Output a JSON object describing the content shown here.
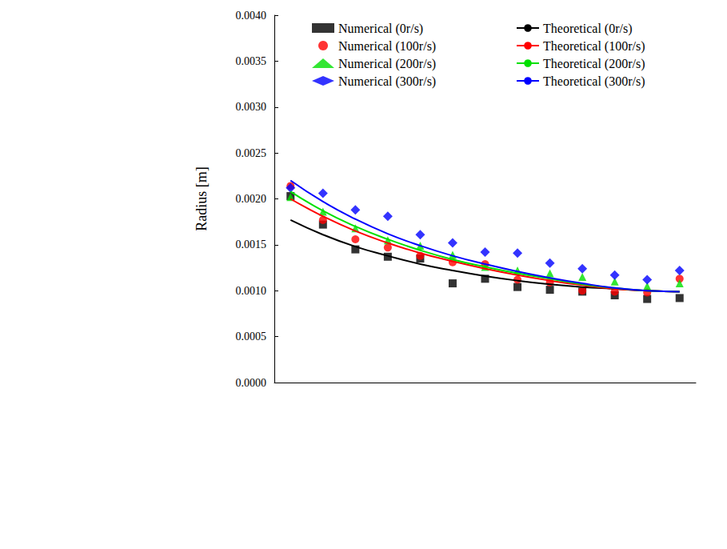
{
  "chart_data": {
    "type": "line",
    "y_label": "Radius [m]",
    "categories": [
      null,
      null,
      null,
      null,
      null,
      null,
      null,
      null,
      null,
      null,
      null,
      null,
      null
    ],
    "ylim": [
      0,
      0.004
    ],
    "yticks": [
      {
        "value": 0,
        "label": "0.0000"
      },
      {
        "value": 0.0005,
        "label": "0.0005"
      },
      {
        "value": 0.001,
        "label": "0.0010"
      },
      {
        "value": 0.0015,
        "label": "0.0015"
      },
      {
        "value": 0.002,
        "label": "0.0020"
      },
      {
        "value": 0.0025,
        "label": "0.0025"
      },
      {
        "value": 0.003,
        "label": "0.0030"
      },
      {
        "value": 0.0035,
        "label": "0.0035"
      },
      {
        "value": 0.004,
        "label": "0.0040"
      }
    ],
    "grid": false,
    "legend": "top",
    "tick_labels": "y",
    "series": [
      {
        "name": "Numerical (0r/s)",
        "type": "scatter",
        "marker": "square",
        "color": "#000000",
        "values": [
          0.00203,
          0.00172,
          0.00145,
          0.00137,
          0.00135,
          0.00108,
          0.00113,
          0.00104,
          0.00101,
          0.00099,
          0.00095,
          0.00091,
          0.00092
        ]
      },
      {
        "name": "Numerical (100r/s)",
        "type": "scatter",
        "marker": "circle",
        "color": "#ff0000",
        "values": [
          0.00214,
          0.00177,
          0.00156,
          0.00147,
          0.00138,
          0.00131,
          0.00129,
          0.00112,
          0.00109,
          0.001,
          0.00099,
          0.00098,
          0.00113
        ]
      },
      {
        "name": "Numerical (200r/s)",
        "type": "scatter",
        "marker": "triangle",
        "color": "#00e000",
        "values": [
          0.00202,
          0.00186,
          0.00168,
          0.00155,
          0.00149,
          0.00139,
          0.00126,
          0.00122,
          0.00119,
          0.00115,
          0.0011,
          0.00105,
          0.00108
        ]
      },
      {
        "name": "Numerical (300r/s)",
        "type": "scatter",
        "marker": "diamond",
        "color": "#0000ff",
        "values": [
          0.00212,
          0.00206,
          0.00188,
          0.00181,
          0.00161,
          0.00152,
          0.00142,
          0.00141,
          0.0013,
          0.00124,
          0.00117,
          0.00112,
          0.00122
        ]
      },
      {
        "name": "Theoretical (0r/s)",
        "type": "line",
        "line_style": "solid",
        "color": "#000000",
        "values": [
          0.00177,
          0.00161,
          0.00148,
          0.00138,
          0.00129,
          0.00122,
          0.00116,
          0.00111,
          0.00107,
          0.00104,
          0.00102,
          0.001,
          0.00099
        ]
      },
      {
        "name": "Theoretical (100r/s)",
        "type": "line",
        "line_style": "solid",
        "color": "#ff0000",
        "values": [
          0.002,
          0.00181,
          0.00165,
          0.00152,
          0.00141,
          0.00132,
          0.00124,
          0.00117,
          0.00111,
          0.00106,
          0.00102,
          0.001,
          0.00099
        ]
      },
      {
        "name": "Theoretical (200r/s)",
        "type": "line",
        "line_style": "solid",
        "color": "#00e000",
        "values": [
          0.00208,
          0.00187,
          0.0017,
          0.00156,
          0.00144,
          0.00134,
          0.00126,
          0.00119,
          0.00113,
          0.00107,
          0.00103,
          0.001,
          0.00099
        ]
      },
      {
        "name": "Theoretical (300r/s)",
        "type": "line",
        "line_style": "solid",
        "color": "#0000ff",
        "values": [
          0.0022,
          0.00197,
          0.00178,
          0.00162,
          0.00149,
          0.00138,
          0.00129,
          0.00121,
          0.00114,
          0.00108,
          0.00103,
          0.001,
          0.00099
        ]
      }
    ]
  }
}
